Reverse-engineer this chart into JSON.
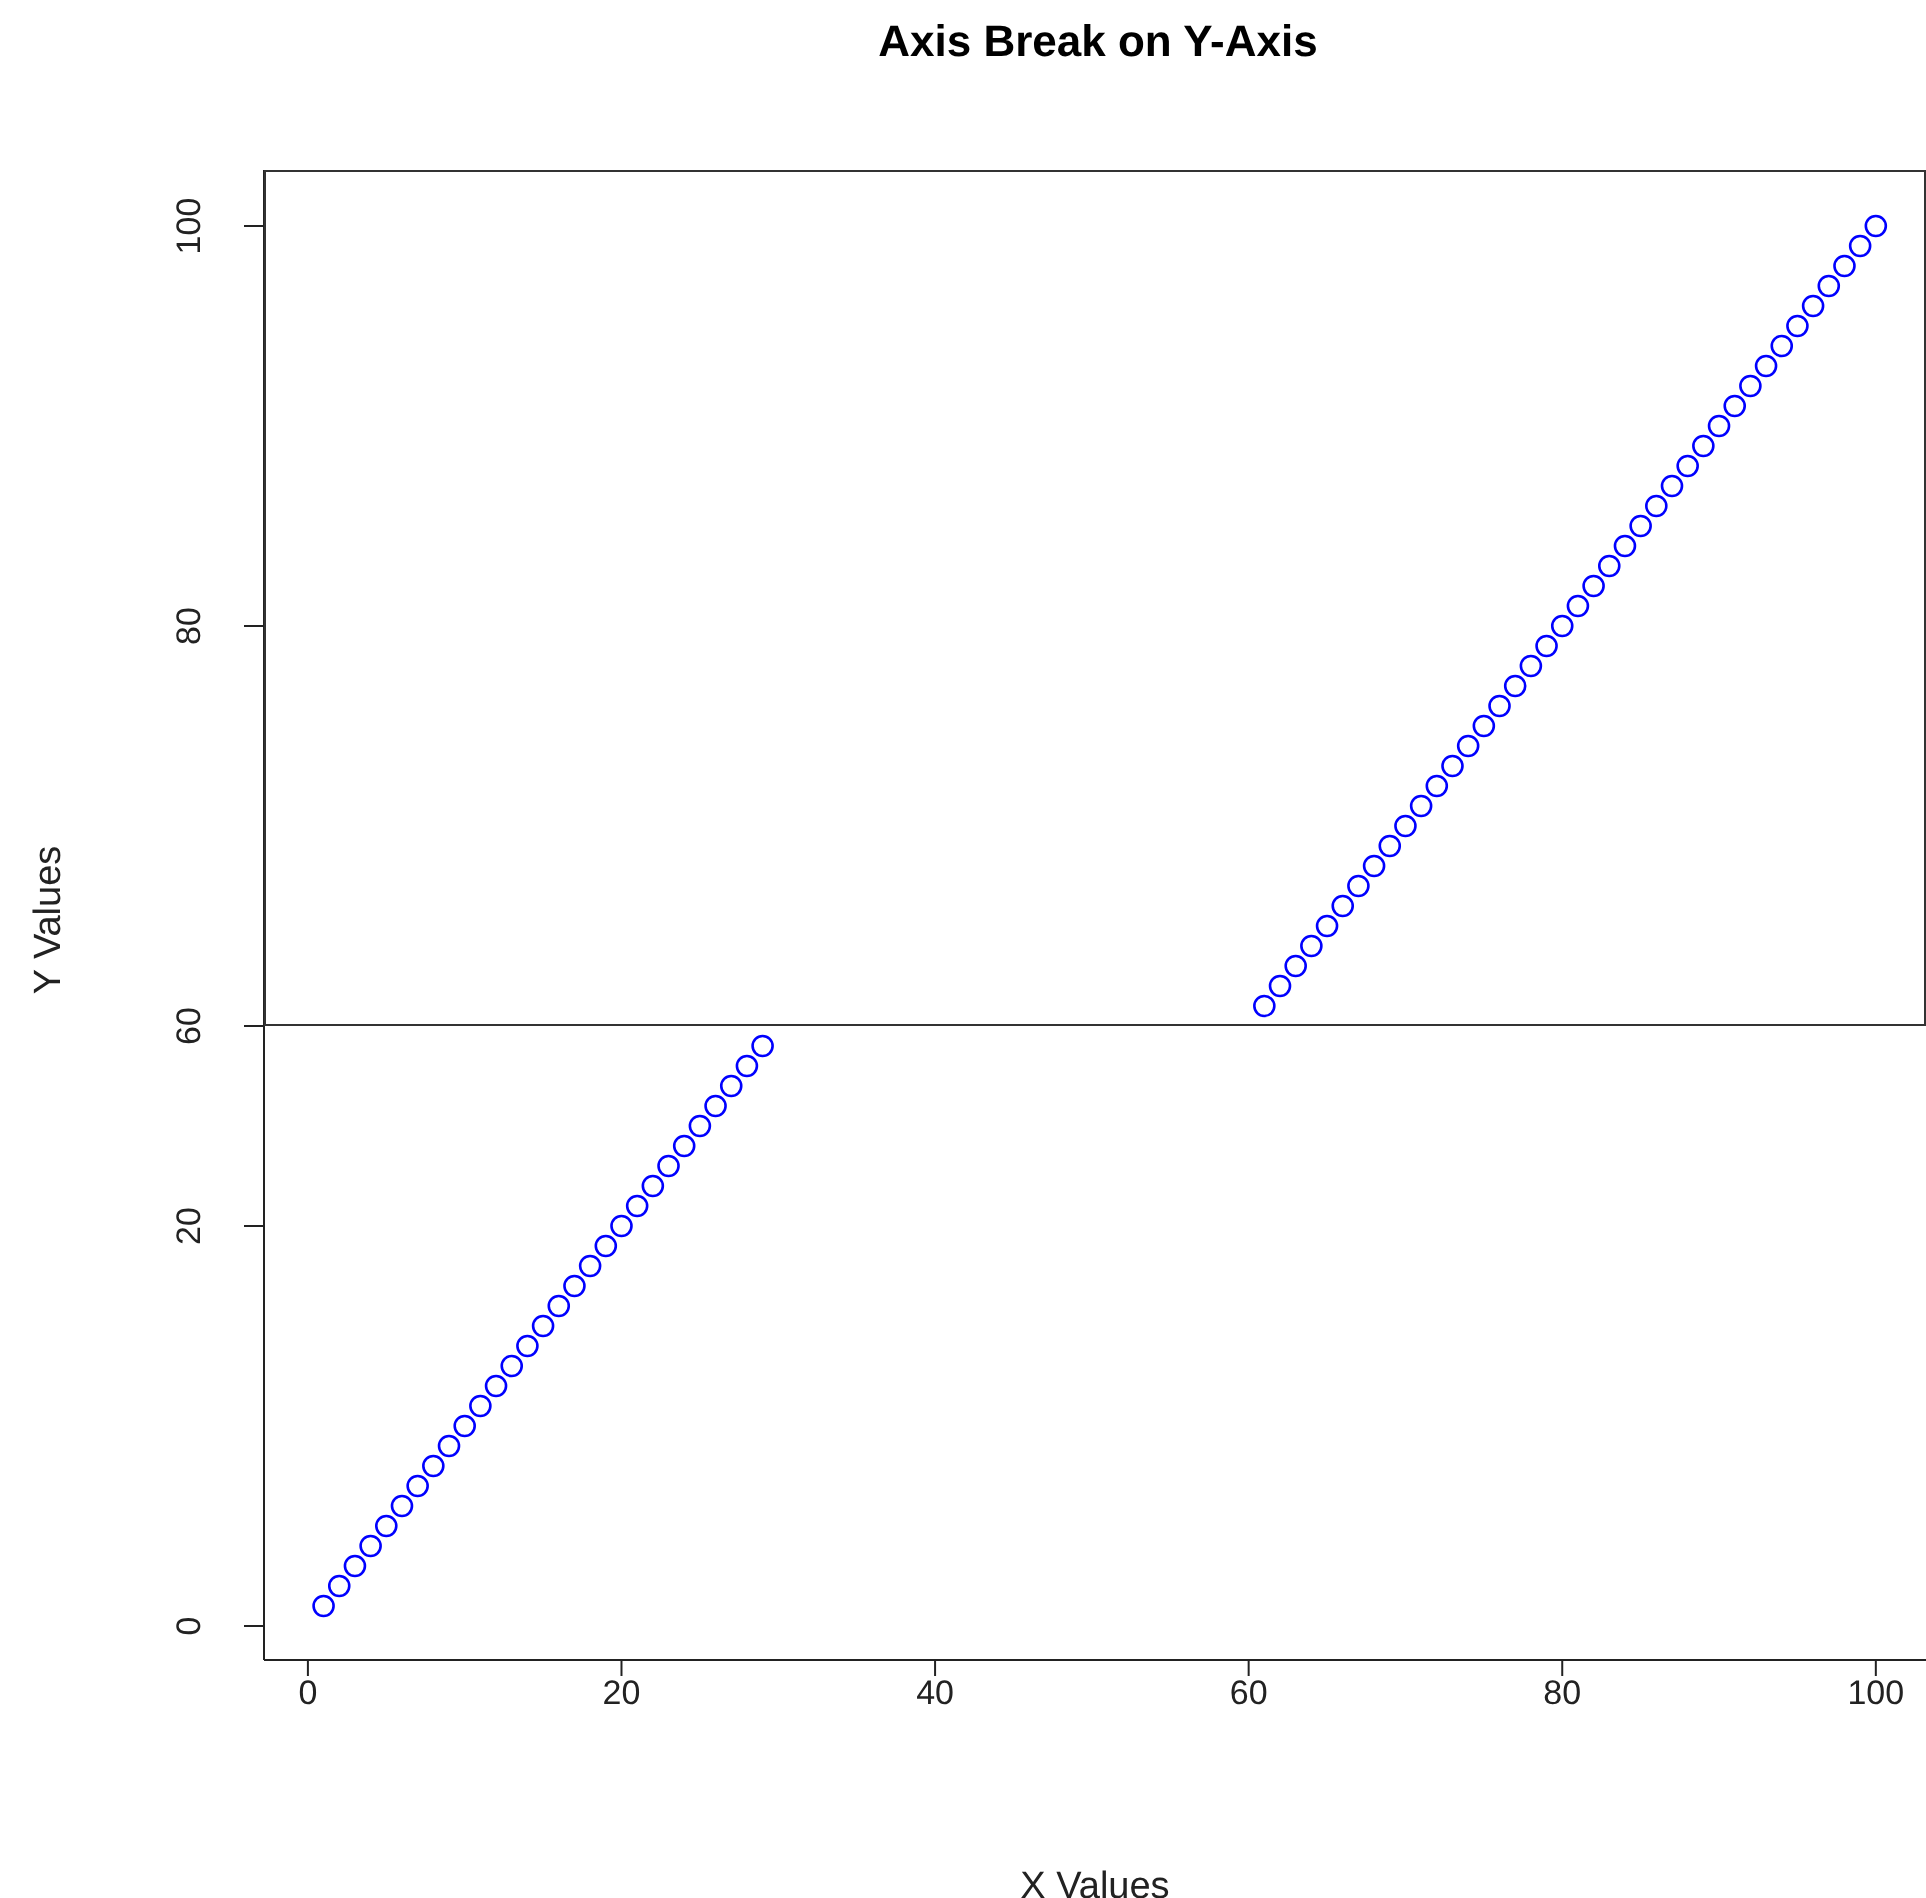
{
  "chart_data": [
    {
      "type": "scatter",
      "title": "Axis Break on Y-Axis",
      "ylabel": "Y Values",
      "x": [
        61,
        62,
        63,
        64,
        65,
        66,
        67,
        68,
        69,
        70,
        71,
        72,
        73,
        74,
        75,
        76,
        77,
        78,
        79,
        80,
        81,
        82,
        83,
        84,
        85,
        86,
        87,
        88,
        89,
        90,
        91,
        92,
        93,
        94,
        95,
        96,
        97,
        98,
        99,
        100
      ],
      "values": [
        61,
        62,
        63,
        64,
        65,
        66,
        67,
        68,
        69,
        70,
        71,
        72,
        73,
        74,
        75,
        76,
        77,
        78,
        79,
        80,
        81,
        82,
        83,
        84,
        85,
        86,
        87,
        88,
        89,
        90,
        91,
        92,
        93,
        94,
        95,
        96,
        97,
        98,
        99,
        100
      ],
      "color": "#0000ff",
      "marker": "circle",
      "xlim": [
        -2.8,
        103.2
      ],
      "ylim": [
        60,
        102.8
      ],
      "yticks": [
        60,
        80,
        100
      ],
      "tick_labels": "y"
    },
    {
      "type": "scatter",
      "xlabel": "X Values",
      "x": [
        1,
        2,
        3,
        4,
        5,
        6,
        7,
        8,
        9,
        10,
        11,
        12,
        13,
        14,
        15,
        16,
        17,
        18,
        19,
        20,
        21,
        22,
        23,
        24,
        25,
        26,
        27,
        28,
        29
      ],
      "values": [
        1,
        2,
        3,
        4,
        5,
        6,
        7,
        8,
        9,
        10,
        11,
        12,
        13,
        14,
        15,
        16,
        17,
        18,
        19,
        20,
        21,
        22,
        23,
        24,
        25,
        26,
        27,
        28,
        29
      ],
      "color": "#0000ff",
      "marker": "circle",
      "xlim": [
        -2.8,
        103.2
      ],
      "xticks": [
        0,
        20,
        40,
        60,
        80,
        100
      ],
      "ylim": [
        -1.7,
        30
      ],
      "yticks": [
        0,
        20
      ]
    }
  ]
}
